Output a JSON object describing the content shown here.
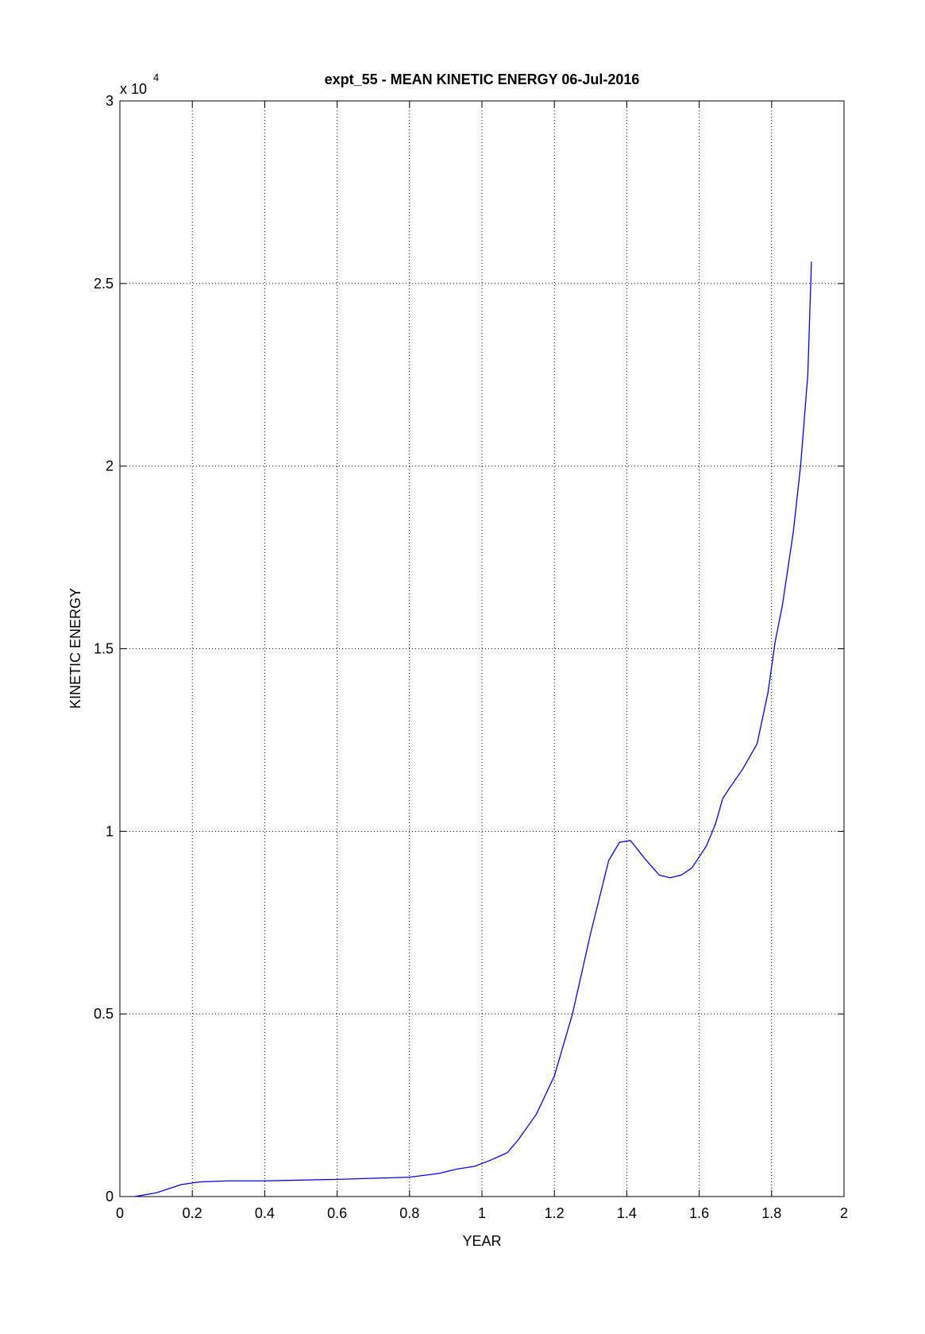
{
  "chart_data": {
    "type": "line",
    "title": "expt_55 - MEAN KINETIC ENERGY 06-Jul-2016",
    "x_label": "YEAR",
    "y_label": "KINETIC ENERGY",
    "y_multiplier": "x 10",
    "y_multiplier_exponent": "4",
    "x": [
      0.04,
      0.1,
      0.17,
      0.22,
      0.3,
      0.4,
      0.5,
      0.6,
      0.7,
      0.8,
      0.88,
      0.93,
      0.98,
      1.02,
      1.07,
      1.1,
      1.15,
      1.2,
      1.25,
      1.3,
      1.35,
      1.38,
      1.41,
      1.45,
      1.49,
      1.52,
      1.55,
      1.58,
      1.62,
      1.645,
      1.665,
      1.685,
      1.72,
      1.76,
      1.79,
      1.81,
      1.83,
      1.86,
      1.88,
      1.9,
      1.91
    ],
    "values": [
      0,
      0.01,
      0.033,
      0.04,
      0.043,
      0.043,
      0.045,
      0.047,
      0.05,
      0.053,
      0.063,
      0.075,
      0.083,
      0.098,
      0.12,
      0.155,
      0.225,
      0.33,
      0.5,
      0.72,
      0.92,
      0.97,
      0.975,
      0.925,
      0.88,
      0.873,
      0.88,
      0.9,
      0.96,
      1.02,
      1.09,
      1.12,
      1.17,
      1.24,
      1.38,
      1.52,
      1.62,
      1.82,
      2.0,
      2.25,
      2.56
    ],
    "color": "#0000ff",
    "xlim": [
      0,
      2
    ],
    "xticks": [
      0,
      0.2,
      0.4,
      0.6,
      0.8,
      1,
      1.2,
      1.4,
      1.6,
      1.8,
      2
    ],
    "ylim": [
      0,
      3
    ],
    "yticks": [
      0,
      0.5,
      1,
      1.5,
      2,
      2.5,
      3
    ],
    "grid": true
  }
}
